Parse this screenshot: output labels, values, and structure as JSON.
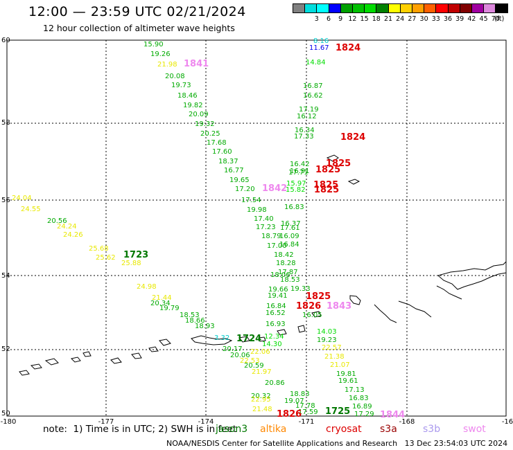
{
  "header": {
    "title": "12:00 — 23:59 UTC 02/21/2024",
    "subtitle": "12 hour collection of altimeter wave heights"
  },
  "legend": {
    "unit": "(ft)",
    "items": [
      {
        "label": "",
        "color": "#808080"
      },
      {
        "label": "3",
        "color": "#00dddd"
      },
      {
        "label": "6",
        "color": "#00ffff"
      },
      {
        "label": "9",
        "color": "#0000ff"
      },
      {
        "label": "12",
        "color": "#00a000"
      },
      {
        "label": "15",
        "color": "#00c000"
      },
      {
        "label": "18",
        "color": "#00dd00"
      },
      {
        "label": "21",
        "color": "#008000"
      },
      {
        "label": "24",
        "color": "#ffff00"
      },
      {
        "label": "27",
        "color": "#ffd000"
      },
      {
        "label": "30",
        "color": "#ffa000"
      },
      {
        "label": "33",
        "color": "#ff6000"
      },
      {
        "label": "36",
        "color": "#ff0000"
      },
      {
        "label": "39",
        "color": "#c00000"
      },
      {
        "label": "42",
        "color": "#800000"
      },
      {
        "label": "45",
        "color": "#a000a0"
      },
      {
        "label": "70",
        "color": "#dd88dd"
      },
      {
        "label": "",
        "color": "#000000"
      }
    ]
  },
  "axes": {
    "lon_labels": [
      "-180",
      "-177",
      "-174",
      "-171",
      "-168",
      "-16"
    ],
    "lat_labels": [
      "60",
      "58",
      "56",
      "54",
      "52",
      "50"
    ]
  },
  "track_a": [
    {
      "t": "15.90",
      "c": "#00aa00"
    },
    {
      "t": "19.26",
      "c": "#00aa00"
    },
    {
      "t": "21.98",
      "c": "#e8e800"
    },
    {
      "t": "20.08",
      "c": "#00aa00"
    },
    {
      "t": "19.73",
      "c": "#00aa00"
    },
    {
      "t": "18.46",
      "c": "#00aa00"
    },
    {
      "t": "19.82",
      "c": "#00aa00"
    },
    {
      "t": "20.09",
      "c": "#00aa00"
    },
    {
      "t": "19.32",
      "c": "#00aa00"
    },
    {
      "t": "20.25",
      "c": "#00aa00"
    },
    {
      "t": "17.68",
      "c": "#00aa00"
    },
    {
      "t": "17.60",
      "c": "#00aa00"
    },
    {
      "t": "18.37",
      "c": "#00aa00"
    },
    {
      "t": "16.77",
      "c": "#00aa00"
    },
    {
      "t": "19.65",
      "c": "#00aa00"
    },
    {
      "t": "17.20",
      "c": "#00aa00"
    },
    {
      "t": "17.54",
      "c": "#00aa00"
    },
    {
      "t": "19.98",
      "c": "#00aa00"
    },
    {
      "t": "17.40",
      "c": "#00aa00"
    },
    {
      "t": "17.23",
      "c": "#00aa00"
    },
    {
      "t": "18.79",
      "c": "#00aa00"
    },
    {
      "t": "17.00",
      "c": "#00aa00"
    },
    {
      "t": "18.42",
      "c": "#00aa00"
    },
    {
      "t": "18.06",
      "c": "#00aa00"
    },
    {
      "t": "19.66",
      "c": "#00aa00"
    },
    {
      "t": "19.41",
      "c": "#00aa00"
    },
    {
      "t": "16.84",
      "c": "#00aa00"
    },
    {
      "t": "16.52",
      "c": "#00aa00"
    },
    {
      "t": "16.93",
      "c": "#00aa00"
    },
    {
      "t": "12.34",
      "c": "#00dd00"
    },
    {
      "t": "14.30",
      "c": "#00dd00"
    },
    {
      "t": "22.06",
      "c": "#e8e800"
    },
    {
      "t": "20.59",
      "c": "#00aa00"
    },
    {
      "t": "21.97",
      "c": "#e8e800"
    },
    {
      "t": "20.86",
      "c": "#00aa00"
    },
    {
      "t": "20.32",
      "c": "#00aa00"
    },
    {
      "t": "22.95",
      "c": "#e8e800"
    },
    {
      "t": "21.48",
      "c": "#e8e800"
    }
  ],
  "track_b": [
    {
      "t": "8.16",
      "c": "#00cccc"
    },
    {
      "t": "11.67",
      "c": "#0000ee"
    },
    {
      "t": "14.84",
      "c": "#00dd00"
    },
    {
      "t": "16.87",
      "c": "#00aa00"
    },
    {
      "t": "16.62",
      "c": "#00aa00"
    },
    {
      "t": "17.19",
      "c": "#00aa00"
    },
    {
      "t": "16.12",
      "c": "#00aa00"
    },
    {
      "t": "16.34",
      "c": "#00aa00"
    },
    {
      "t": "17.33",
      "c": "#00aa00"
    },
    {
      "t": "16.42",
      "c": "#00aa00"
    },
    {
      "t": "16.91",
      "c": "#00aa00"
    },
    {
      "t": "17.71",
      "c": "#00aa00"
    },
    {
      "t": "15.97",
      "c": "#00dd00"
    },
    {
      "t": "15.82",
      "c": "#00dd00"
    },
    {
      "t": "16.83",
      "c": "#00aa00"
    },
    {
      "t": "16.37",
      "c": "#00aa00"
    },
    {
      "t": "17.61",
      "c": "#00aa00"
    },
    {
      "t": "16.09",
      "c": "#00aa00"
    },
    {
      "t": "16.84",
      "c": "#00aa00"
    },
    {
      "t": "18.28",
      "c": "#00aa00"
    },
    {
      "t": "17.87",
      "c": "#00aa00"
    },
    {
      "t": "18.53",
      "c": "#00aa00"
    },
    {
      "t": "19.33",
      "c": "#00aa00"
    },
    {
      "t": "16.05",
      "c": "#00aa00"
    },
    {
      "t": "14.03",
      "c": "#00dd00"
    },
    {
      "t": "19.23",
      "c": "#00aa00"
    },
    {
      "t": "22.57",
      "c": "#e8e800"
    },
    {
      "t": "21.38",
      "c": "#e8e800"
    },
    {
      "t": "21.07",
      "c": "#e8e800"
    },
    {
      "t": "19.81",
      "c": "#00aa00"
    },
    {
      "t": "19.61",
      "c": "#00aa00"
    },
    {
      "t": "17.13",
      "c": "#00aa00"
    },
    {
      "t": "16.83",
      "c": "#00aa00"
    },
    {
      "t": "16.89",
      "c": "#00aa00"
    },
    {
      "t": "17.29",
      "c": "#00aa00"
    }
  ],
  "track_c": [
    {
      "t": "24.04",
      "c": "#e8e800"
    },
    {
      "t": "24.55",
      "c": "#e8e800"
    },
    {
      "t": "20.56",
      "c": "#00aa00"
    },
    {
      "t": "24.24",
      "c": "#e8e800"
    },
    {
      "t": "24.26",
      "c": "#e8e800"
    },
    {
      "t": "25.68",
      "c": "#e8e800"
    },
    {
      "t": "25.62",
      "c": "#e8e800"
    },
    {
      "t": "25.88",
      "c": "#e8e800"
    },
    {
      "t": "24.98",
      "c": "#e8e800"
    },
    {
      "t": "21.44",
      "c": "#e8e800"
    },
    {
      "t": "20.34",
      "c": "#00aa00"
    },
    {
      "t": "19.79",
      "c": "#00aa00"
    },
    {
      "t": "18.53",
      "c": "#00aa00"
    },
    {
      "t": "18.66",
      "c": "#00aa00"
    },
    {
      "t": "18.93",
      "c": "#00aa00"
    }
  ],
  "track_d": [
    {
      "t": "3.32",
      "c": "#00cccc"
    },
    {
      "t": "20.17",
      "c": "#00aa00"
    },
    {
      "t": "20.06",
      "c": "#00aa00"
    },
    {
      "t": "22.53",
      "c": "#e8e800"
    },
    {
      "t": "19.07",
      "c": "#00aa00"
    },
    {
      "t": "18.83",
      "c": "#00aa00"
    },
    {
      "t": "17.78",
      "c": "#00aa00"
    },
    {
      "t": "17.59",
      "c": "#00aa00"
    }
  ],
  "time_labels": [
    {
      "t": "1824",
      "c": "#dd0000"
    },
    {
      "t": "1841",
      "c": "#ee88ee"
    },
    {
      "t": "1824",
      "c": "#dd0000"
    },
    {
      "t": "1825",
      "c": "#dd0000"
    },
    {
      "t": "1825",
      "c": "#dd0000"
    },
    {
      "t": "1825",
      "c": "#dd0000"
    },
    {
      "t": "1825",
      "c": "#dd0000"
    },
    {
      "t": "1842",
      "c": "#ee88ee"
    },
    {
      "t": "1723",
      "c": "#007700"
    },
    {
      "t": "1825",
      "c": "#dd0000"
    },
    {
      "t": "1826",
      "c": "#dd0000"
    },
    {
      "t": "1843",
      "c": "#ee88ee"
    },
    {
      "t": "1724",
      "c": "#007700"
    },
    {
      "t": "1826",
      "c": "#dd0000"
    },
    {
      "t": "1725",
      "c": "#007700"
    },
    {
      "t": "1844",
      "c": "#ee88ee"
    }
  ],
  "footer": {
    "note": "note:  1) Time is in UTC; 2) SWH is in feet",
    "satellites": [
      {
        "name": "jason3",
        "color": "#007700"
      },
      {
        "name": "altika",
        "color": "#ff8800"
      },
      {
        "name": "cryosat",
        "color": "#dd0000"
      },
      {
        "name": "s3a",
        "color": "#990000"
      },
      {
        "name": "s3b",
        "color": "#aa99ee"
      },
      {
        "name": "swot",
        "color": "#ee88ee"
      }
    ],
    "credit": "NOAA/NESDIS Center for Satellite Applications and Research   13 Dec 23:54:03 UTC 2024"
  }
}
